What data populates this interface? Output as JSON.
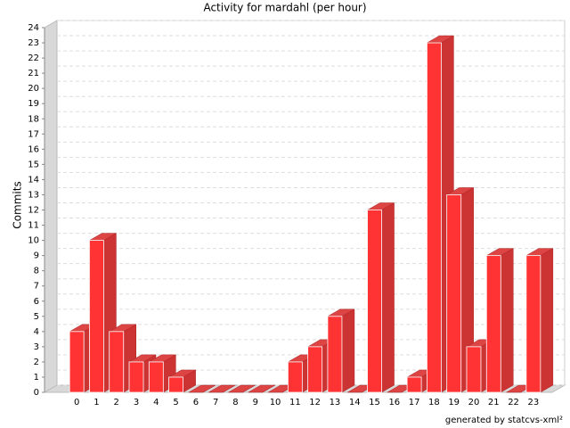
{
  "chart_data": {
    "type": "bar3d",
    "title": "Activity for mardahl (per hour)",
    "y_label": "Commits",
    "footer": "generated by statcvs-xml²",
    "categories": [
      "0",
      "1",
      "2",
      "3",
      "4",
      "5",
      "6",
      "7",
      "8",
      "9",
      "10",
      "11",
      "12",
      "13",
      "14",
      "15",
      "16",
      "17",
      "18",
      "19",
      "20",
      "21",
      "22",
      "23"
    ],
    "values": [
      4,
      10,
      4,
      2,
      2,
      1,
      0,
      0,
      0,
      0,
      0,
      2,
      3,
      5,
      0,
      12,
      0,
      1,
      23,
      13,
      3,
      9,
      0,
      9
    ],
    "color": "#ff3333",
    "ylim": [
      0,
      24
    ],
    "yticks": [
      0,
      1,
      2,
      3,
      4,
      5,
      6,
      7,
      8,
      9,
      10,
      11,
      12,
      13,
      14,
      15,
      16,
      17,
      18,
      19,
      20,
      21,
      22,
      23,
      24
    ],
    "grid": true
  }
}
